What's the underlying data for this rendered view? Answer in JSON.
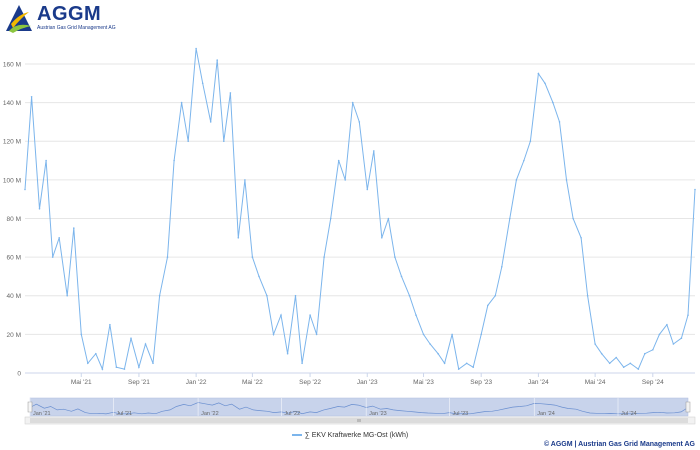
{
  "logo": {
    "name": "AGGM",
    "subtitle": "Austrian Gas Grid Management AG",
    "colors": {
      "navy": "#1a3a8a",
      "gold": "#f2b800",
      "green": "#8cc63f"
    }
  },
  "credits": "© AGGM | Austrian Gas Grid Management AG",
  "chart_data": {
    "type": "line",
    "title": "",
    "xlabel": "",
    "ylabel": "",
    "x_start": "2021-01-01",
    "x_end": "2024-11-30",
    "ylim": [
      0,
      175000000
    ],
    "yticks": [
      0,
      20000000,
      40000000,
      60000000,
      80000000,
      100000000,
      120000000,
      140000000,
      160000000
    ],
    "ytick_labels": [
      "0",
      "20 M",
      "40 M",
      "60 M",
      "80 M",
      "100 M",
      "120 M",
      "140 M",
      "160 M"
    ],
    "xticks": [
      "2021-05-01",
      "2021-09-01",
      "2022-01-01",
      "2022-05-01",
      "2022-09-01",
      "2023-01-01",
      "2023-05-01",
      "2023-09-01",
      "2024-01-01",
      "2024-05-01",
      "2024-09-01"
    ],
    "xtick_labels": [
      "Mai '21",
      "Sep '21",
      "Jan '22",
      "Mai '22",
      "Sep '22",
      "Jan '23",
      "Mai '23",
      "Sep '23",
      "Jan '24",
      "Mai '24",
      "Sep '24"
    ],
    "grid": true,
    "legend_position": "bottom-center",
    "color": "#7cb5ec",
    "series": [
      {
        "name": "∑ EKV Kraftwerke MG-Ost (kWh)",
        "x": [
          "2021-01-01",
          "2021-01-15",
          "2021-02-01",
          "2021-02-15",
          "2021-03-01",
          "2021-03-15",
          "2021-04-01",
          "2021-04-15",
          "2021-05-01",
          "2021-05-15",
          "2021-06-01",
          "2021-06-15",
          "2021-07-01",
          "2021-07-15",
          "2021-08-01",
          "2021-08-15",
          "2021-09-01",
          "2021-09-15",
          "2021-10-01",
          "2021-10-15",
          "2021-11-01",
          "2021-11-15",
          "2021-12-01",
          "2021-12-15",
          "2022-01-01",
          "2022-01-15",
          "2022-02-01",
          "2022-02-15",
          "2022-03-01",
          "2022-03-15",
          "2022-04-01",
          "2022-04-15",
          "2022-05-01",
          "2022-05-15",
          "2022-06-01",
          "2022-06-15",
          "2022-07-01",
          "2022-07-15",
          "2022-08-01",
          "2022-08-15",
          "2022-09-01",
          "2022-09-15",
          "2022-10-01",
          "2022-10-15",
          "2022-11-01",
          "2022-11-15",
          "2022-12-01",
          "2022-12-15",
          "2023-01-01",
          "2023-01-15",
          "2023-02-01",
          "2023-02-15",
          "2023-03-01",
          "2023-03-15",
          "2023-04-01",
          "2023-04-15",
          "2023-05-01",
          "2023-05-15",
          "2023-06-01",
          "2023-06-15",
          "2023-07-01",
          "2023-07-15",
          "2023-08-01",
          "2023-08-15",
          "2023-09-01",
          "2023-09-15",
          "2023-10-01",
          "2023-10-15",
          "2023-11-01",
          "2023-11-15",
          "2023-12-01",
          "2023-12-15",
          "2024-01-01",
          "2024-01-15",
          "2024-02-01",
          "2024-02-15",
          "2024-03-01",
          "2024-03-15",
          "2024-04-01",
          "2024-04-15",
          "2024-05-01",
          "2024-05-15",
          "2024-06-01",
          "2024-06-15",
          "2024-07-01",
          "2024-07-15",
          "2024-08-01",
          "2024-08-15",
          "2024-09-01",
          "2024-09-15",
          "2024-10-01",
          "2024-10-15",
          "2024-11-01",
          "2024-11-15",
          "2024-11-30"
        ],
        "values": [
          95000000,
          143000000,
          85000000,
          110000000,
          60000000,
          70000000,
          40000000,
          75000000,
          20000000,
          5000000,
          10000000,
          2000000,
          25000000,
          3000000,
          2000000,
          18000000,
          3000000,
          15000000,
          5000000,
          40000000,
          60000000,
          110000000,
          140000000,
          120000000,
          168000000,
          150000000,
          130000000,
          162000000,
          120000000,
          145000000,
          70000000,
          100000000,
          60000000,
          50000000,
          40000000,
          20000000,
          30000000,
          10000000,
          40000000,
          5000000,
          30000000,
          20000000,
          60000000,
          80000000,
          110000000,
          100000000,
          140000000,
          130000000,
          95000000,
          115000000,
          70000000,
          80000000,
          60000000,
          50000000,
          40000000,
          30000000,
          20000000,
          15000000,
          10000000,
          5000000,
          20000000,
          2000000,
          5000000,
          3000000,
          20000000,
          35000000,
          40000000,
          55000000,
          80000000,
          100000000,
          110000000,
          120000000,
          155000000,
          150000000,
          140000000,
          130000000,
          100000000,
          80000000,
          70000000,
          40000000,
          15000000,
          10000000,
          5000000,
          8000000,
          3000000,
          5000000,
          2000000,
          10000000,
          12000000,
          20000000,
          25000000,
          15000000,
          18000000,
          30000000,
          95000000
        ]
      }
    ]
  },
  "navigator": {
    "labels": [
      "Jan '21",
      "Jul '21",
      "Jan '22",
      "Jul '22",
      "Jan '23",
      "Jul '23",
      "Jan '24",
      "Jul '24"
    ]
  }
}
